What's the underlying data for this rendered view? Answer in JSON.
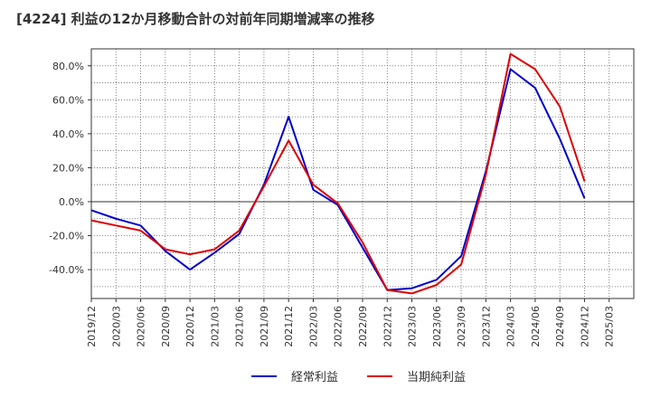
{
  "chart_data": {
    "type": "line",
    "title": "[4224]  利益の12か月移動合計の対前年同期増減率の推移",
    "xlabel": "",
    "ylabel": "",
    "x": [
      "2019/12",
      "2020/03",
      "2020/06",
      "2020/09",
      "2020/12",
      "2021/03",
      "2021/06",
      "2021/09",
      "2021/12",
      "2022/03",
      "2022/06",
      "2022/09",
      "2022/12",
      "2023/03",
      "2023/06",
      "2023/09",
      "2023/12",
      "2024/03",
      "2024/06",
      "2024/09",
      "2024/12",
      "2025/03"
    ],
    "yticks": [
      -40,
      -20,
      0,
      20,
      40,
      60,
      80
    ],
    "ytick_labels": [
      "-40.0%",
      "-20.0%",
      "0.0%",
      "20.0%",
      "40.0%",
      "60.0%",
      "80.0%"
    ],
    "ylim": [
      -57,
      90
    ],
    "grid": true,
    "legend_position": "bottom",
    "series": [
      {
        "name": "経常利益",
        "color": "#0000cc",
        "values": [
          -5,
          -10,
          -14,
          -29,
          -40,
          -30,
          -19,
          10,
          50,
          7,
          -2,
          -27,
          -52,
          -51,
          -46,
          -32,
          18,
          78,
          67,
          37,
          2,
          null
        ]
      },
      {
        "name": "当期純利益",
        "color": "#dd0000",
        "values": [
          -11,
          -14,
          -17,
          -28,
          -31,
          -28,
          -17,
          9,
          36,
          10,
          -1,
          -24,
          -52,
          -54,
          -49,
          -37,
          16,
          87,
          78,
          56,
          12,
          null
        ]
      }
    ]
  }
}
